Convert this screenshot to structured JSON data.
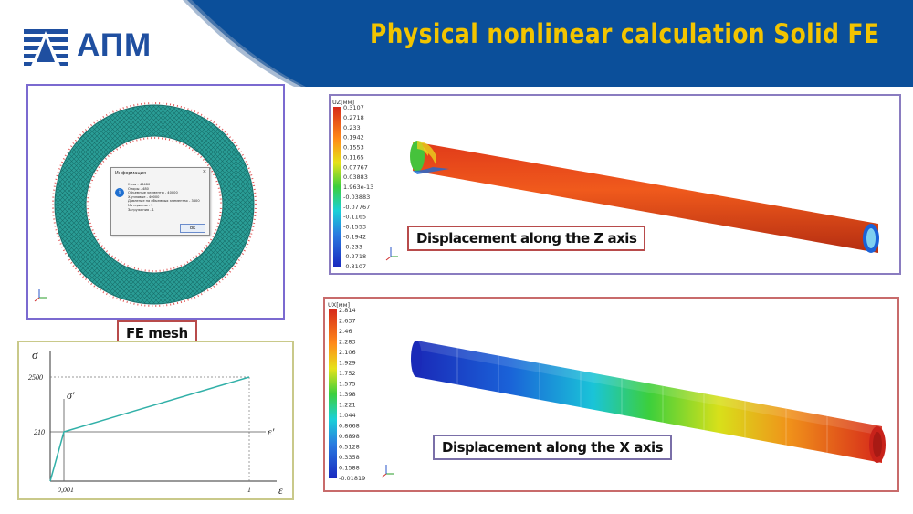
{
  "header": {
    "logo_text": "АПМ",
    "title": "Physical nonlinear calculation Solid FE"
  },
  "mesh_panel": {
    "caption": "FE mesh",
    "dialog": {
      "title": "Информация",
      "lines": [
        "Узлы - 46480",
        "Опоры - 480",
        "Объемные элементы - 40000",
        "Х-узловые - 40000",
        "Давление на объемных элементах - 3600",
        "Материалы - 1",
        "Загружения - 1"
      ],
      "ok_label": "OK"
    }
  },
  "z_panel": {
    "legend_title": "UZ[мм]",
    "legend_values": [
      "0.3107",
      "0.2718",
      "0.233",
      "0.1942",
      "0.1553",
      "0.1165",
      "0.07767",
      "0.03883",
      "1.963e-13",
      "-0.03883",
      "-0.07767",
      "-0.1165",
      "-0.1553",
      "-0.1942",
      "-0.233",
      "-0.2718",
      "-0.3107"
    ],
    "caption": "Displacement along the Z axis"
  },
  "x_panel": {
    "legend_title": "UX[мм]",
    "legend_values": [
      "2.814",
      "2.637",
      "2.46",
      "2.283",
      "2.106",
      "1.929",
      "1.752",
      "1.575",
      "1.398",
      "1.221",
      "1.044",
      "0.8668",
      "0.6898",
      "0.5128",
      "0.3358",
      "0.1588",
      "-0.01819"
    ],
    "caption": "Displacement along the X axis"
  },
  "graph": {
    "y_symbol": "σ",
    "y_prime_symbol": "σ'",
    "x_symbol": "ε",
    "x_prime_symbol": "ε'",
    "y_ticks": [
      "2500",
      "210"
    ],
    "x_ticks": [
      "0,001",
      "1"
    ]
  },
  "chart_data": {
    "type": "line",
    "series": [
      {
        "x": [
          0,
          0.001,
          1
        ],
        "y": [
          0,
          210,
          2500
        ]
      }
    ],
    "xlabel": "ε",
    "ylabel": "σ"
  },
  "colors": {
    "header_blue": "#0b4f9a",
    "title_yellow": "#f2c400",
    "mesh_teal": "#2a9d96",
    "mesh_panel_border": "#7b6ad0",
    "graph_panel_border": "#c9c98a",
    "z_panel_border": "#8a7cc0",
    "x_panel_border": "#c86b6b",
    "caption_border": "#b84b4b",
    "curve": "#31b0a8"
  },
  "icons": [
    "apm-logo-icon",
    "info-icon",
    "close-icon",
    "axis-triad-icon"
  ]
}
